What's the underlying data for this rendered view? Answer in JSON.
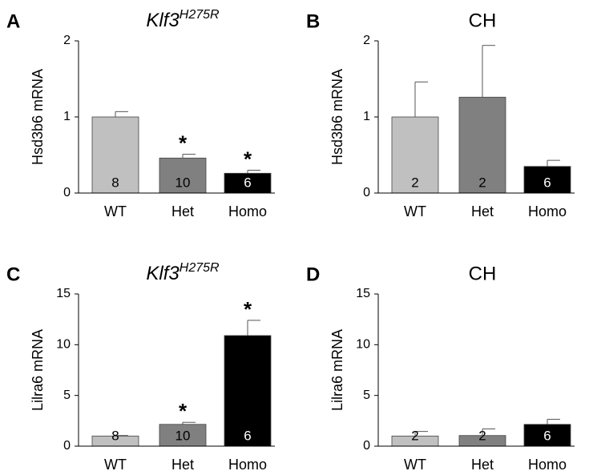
{
  "chart_data": [
    {
      "type": "bar",
      "panel": "A",
      "title": {
        "base": "Klf3",
        "sup": "H275R"
      },
      "ylabel": "Hsd3b6 mRNA",
      "categories": [
        "WT",
        "Het",
        "Homo"
      ],
      "values": [
        1.0,
        0.46,
        0.26
      ],
      "errors": [
        0.07,
        0.05,
        0.04
      ],
      "n_labels": [
        8,
        10,
        6
      ],
      "significance": [
        null,
        "*",
        "*"
      ],
      "colors": [
        "#c0c0c0",
        "#808080",
        "#000000"
      ],
      "ylim": [
        0,
        2
      ],
      "yticks": [
        0,
        1,
        2
      ]
    },
    {
      "type": "bar",
      "panel": "B",
      "title": "CH",
      "ylabel": "Hsd3b6 mRNA",
      "categories": [
        "WT",
        "Het",
        "Homo"
      ],
      "values": [
        1.0,
        1.26,
        0.35
      ],
      "errors": [
        0.46,
        0.68,
        0.08
      ],
      "n_labels": [
        2,
        2,
        6
      ],
      "significance": [
        null,
        null,
        null
      ],
      "colors": [
        "#c0c0c0",
        "#808080",
        "#000000"
      ],
      "ylim": [
        0,
        2
      ],
      "yticks": [
        0,
        1,
        2
      ]
    },
    {
      "type": "bar",
      "panel": "C",
      "title": {
        "base": "Klf3",
        "sup": "H275R"
      },
      "ylabel": "Lilra6 mRNA",
      "categories": [
        "WT",
        "Het",
        "Homo"
      ],
      "values": [
        1.0,
        2.15,
        10.9
      ],
      "errors": [
        0.05,
        0.2,
        1.5
      ],
      "n_labels": [
        8,
        10,
        6
      ],
      "significance": [
        null,
        "*",
        "*"
      ],
      "colors": [
        "#c0c0c0",
        "#808080",
        "#000000"
      ],
      "ylim": [
        0,
        15
      ],
      "yticks": [
        0,
        5,
        10,
        15
      ]
    },
    {
      "type": "bar",
      "panel": "D",
      "title": "CH",
      "ylabel": "Lilra6 mRNA",
      "categories": [
        "WT",
        "Het",
        "Homo"
      ],
      "values": [
        1.0,
        1.05,
        2.15
      ],
      "errors": [
        0.45,
        0.65,
        0.5
      ],
      "n_labels": [
        2,
        2,
        6
      ],
      "significance": [
        null,
        null,
        null
      ],
      "colors": [
        "#c0c0c0",
        "#808080",
        "#000000"
      ],
      "ylim": [
        0,
        15
      ],
      "yticks": [
        0,
        5,
        10,
        15
      ]
    }
  ]
}
